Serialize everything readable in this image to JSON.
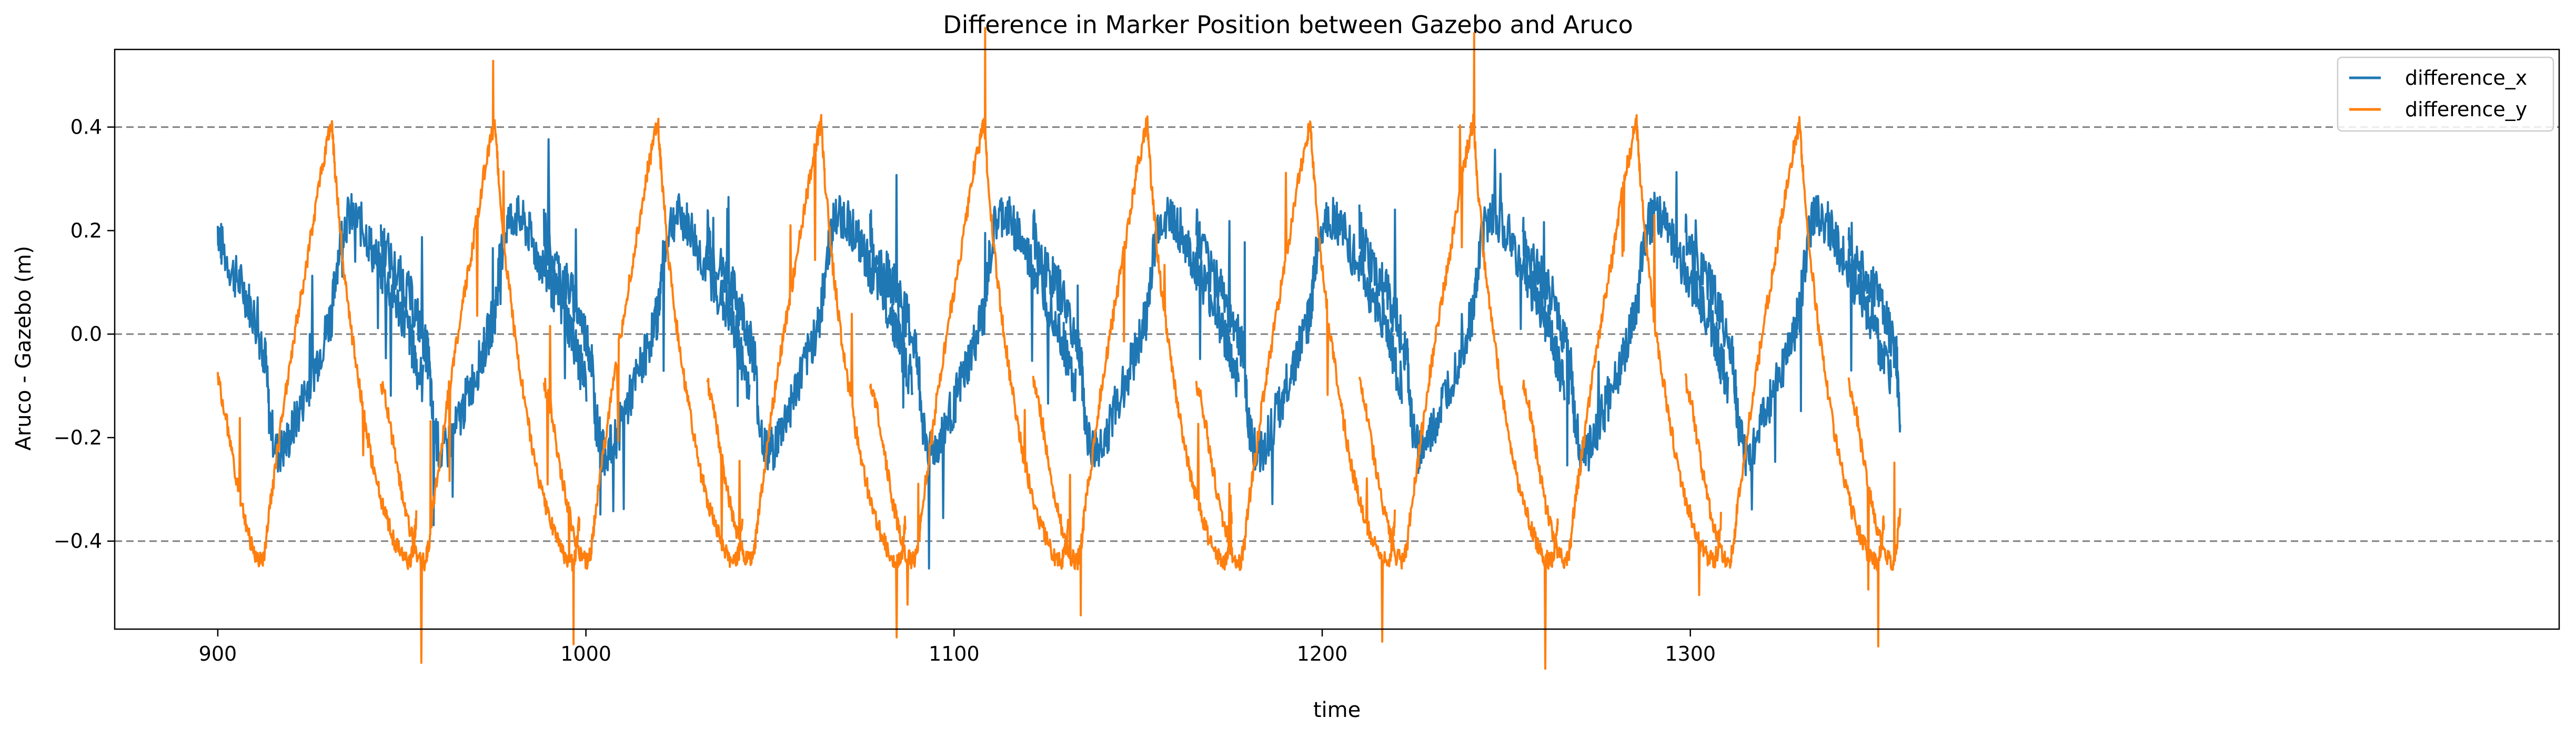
{
  "chart_data": {
    "type": "line",
    "title": "Difference in Marker Position between Gazebo and Aruco",
    "xlabel": "time",
    "ylabel": "Aruco - Gazebo (m)",
    "xlim": [
      872,
      1536
    ],
    "ylim": [
      -0.57,
      0.55
    ],
    "xticks": [
      900,
      1000,
      1100,
      1200,
      1300
    ],
    "yticks": [
      -0.4,
      -0.2,
      0.0,
      0.2,
      0.4
    ],
    "ytick_labels": [
      "−0.4",
      "−0.2",
      "0.0",
      "0.2",
      "0.4"
    ],
    "reference_lines": [
      0.4,
      0.0,
      -0.4
    ],
    "grid": false,
    "legend_position": "top-right",
    "period": 44.3,
    "series": [
      {
        "name": "difference_x",
        "color": "#1f77b4",
        "x": [
          900,
          901,
          904,
          906,
          908,
          910,
          912,
          913,
          914,
          916,
          918,
          920,
          922,
          924,
          926,
          928,
          930,
          931,
          932,
          934,
          936,
          938,
          940,
          942,
          944,
          946,
          948,
          950,
          952,
          953,
          954,
          956
        ],
        "y": [
          0.21,
          0.17,
          0.12,
          0.1,
          0.07,
          0.03,
          -0.02,
          -0.05,
          -0.16,
          -0.23,
          -0.22,
          -0.19,
          -0.15,
          -0.11,
          -0.07,
          -0.03,
          0.02,
          0.04,
          0.12,
          0.21,
          0.23,
          0.22,
          0.2,
          0.16,
          0.13,
          0.1,
          0.07,
          0.04,
          0.0,
          -0.03,
          -0.06,
          -0.1
        ]
      },
      {
        "name": "difference_y",
        "color": "#ff7f0e",
        "x": [
          900,
          902,
          904,
          906,
          908,
          910,
          912,
          913,
          914,
          916,
          918,
          920,
          922,
          924,
          926,
          928,
          930,
          931,
          932,
          934,
          936,
          938,
          940,
          942,
          944,
          946,
          948,
          950,
          952,
          953,
          954
        ],
        "y": [
          -0.09,
          -0.15,
          -0.24,
          -0.32,
          -0.38,
          -0.43,
          -0.44,
          -0.41,
          -0.34,
          -0.24,
          -0.13,
          -0.04,
          0.05,
          0.13,
          0.22,
          0.31,
          0.38,
          0.41,
          0.3,
          0.14,
          0.02,
          -0.08,
          -0.17,
          -0.25,
          -0.31,
          -0.36,
          -0.4,
          -0.43,
          -0.44,
          -0.42,
          -0.35
        ]
      }
    ]
  }
}
